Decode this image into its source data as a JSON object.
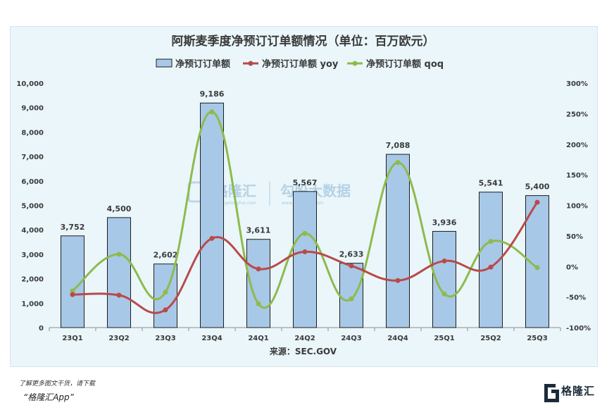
{
  "chart_data": {
    "type": "bar",
    "title": "阿斯麦季度净预订订单额情况（单位：百万欧元）",
    "categories": [
      "23Q1",
      "23Q2",
      "23Q3",
      "23Q4",
      "24Q1",
      "24Q2",
      "24Q3",
      "24Q4",
      "25Q1",
      "25Q2",
      "25Q3"
    ],
    "series": [
      {
        "name": "净预订订单额",
        "type": "bar",
        "axis": "left",
        "color": "#a8c8e8",
        "values": [
          3752,
          4500,
          2602,
          9186,
          3611,
          5567,
          2633,
          7088,
          3936,
          5541,
          5400
        ],
        "labels": [
          "3,752",
          "4,500",
          "2,602",
          "9,186",
          "3,611",
          "5,567",
          "2,633",
          "7,088",
          "3,936",
          "5,541",
          "5,400"
        ]
      },
      {
        "name": "净预订订单额 yoy",
        "type": "line",
        "axis": "right",
        "color": "#b84a4a",
        "values": [
          -46,
          -47,
          -71,
          46,
          -4,
          24,
          1,
          -23,
          9,
          -1,
          105
        ]
      },
      {
        "name": "净预订订单额 qoq",
        "type": "line",
        "axis": "right",
        "color": "#8dbb4c",
        "values": [
          -40,
          20,
          -42,
          253,
          -61,
          54,
          -53,
          170,
          -45,
          41,
          -2
        ]
      }
    ],
    "y_left": {
      "min": 0,
      "max": 10000,
      "ticks": [
        "0",
        "1,000",
        "2,000",
        "3,000",
        "4,000",
        "5,000",
        "6,000",
        "7,000",
        "8,000",
        "9,000",
        "10,000"
      ]
    },
    "y_right": {
      "min": -100,
      "max": 300,
      "ticks": [
        "-100%",
        "-50%",
        "0%",
        "50%",
        "100%",
        "150%",
        "200%",
        "250%",
        "300%"
      ]
    },
    "legend_position": "top",
    "grid": false,
    "source": "来源：SEC.GOV"
  },
  "watermark": {
    "left": "格隆汇",
    "right": "勾股大数据",
    "url_left": "www.gelonghui.com",
    "url_right": "www.gogudata.com"
  },
  "footer": {
    "note": "了解更多图文干货，请下载",
    "app": "“格隆汇App”",
    "brand": "格隆汇"
  },
  "colors": {
    "panel": "#eaf6fa",
    "bar_stroke": "#1d1d1d",
    "text": "#3a3a3a"
  }
}
